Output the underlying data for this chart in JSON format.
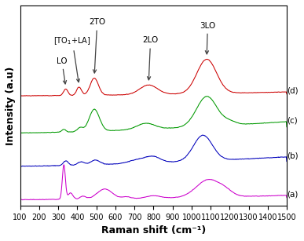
{
  "xmin": 100,
  "xmax": 1500,
  "xticks": [
    100,
    200,
    300,
    400,
    500,
    600,
    700,
    800,
    900,
    1000,
    1100,
    1200,
    1300,
    1400,
    1500
  ],
  "xlabel": "Raman shift (cm⁻¹)",
  "ylabel": "Intensity (a.u)",
  "colors": {
    "a": "#cc00cc",
    "b": "#0000bb",
    "c": "#009900",
    "d": "#cc0000"
  },
  "background": "#ffffff",
  "figsize": [
    3.87,
    3.07
  ],
  "dpi": 100
}
